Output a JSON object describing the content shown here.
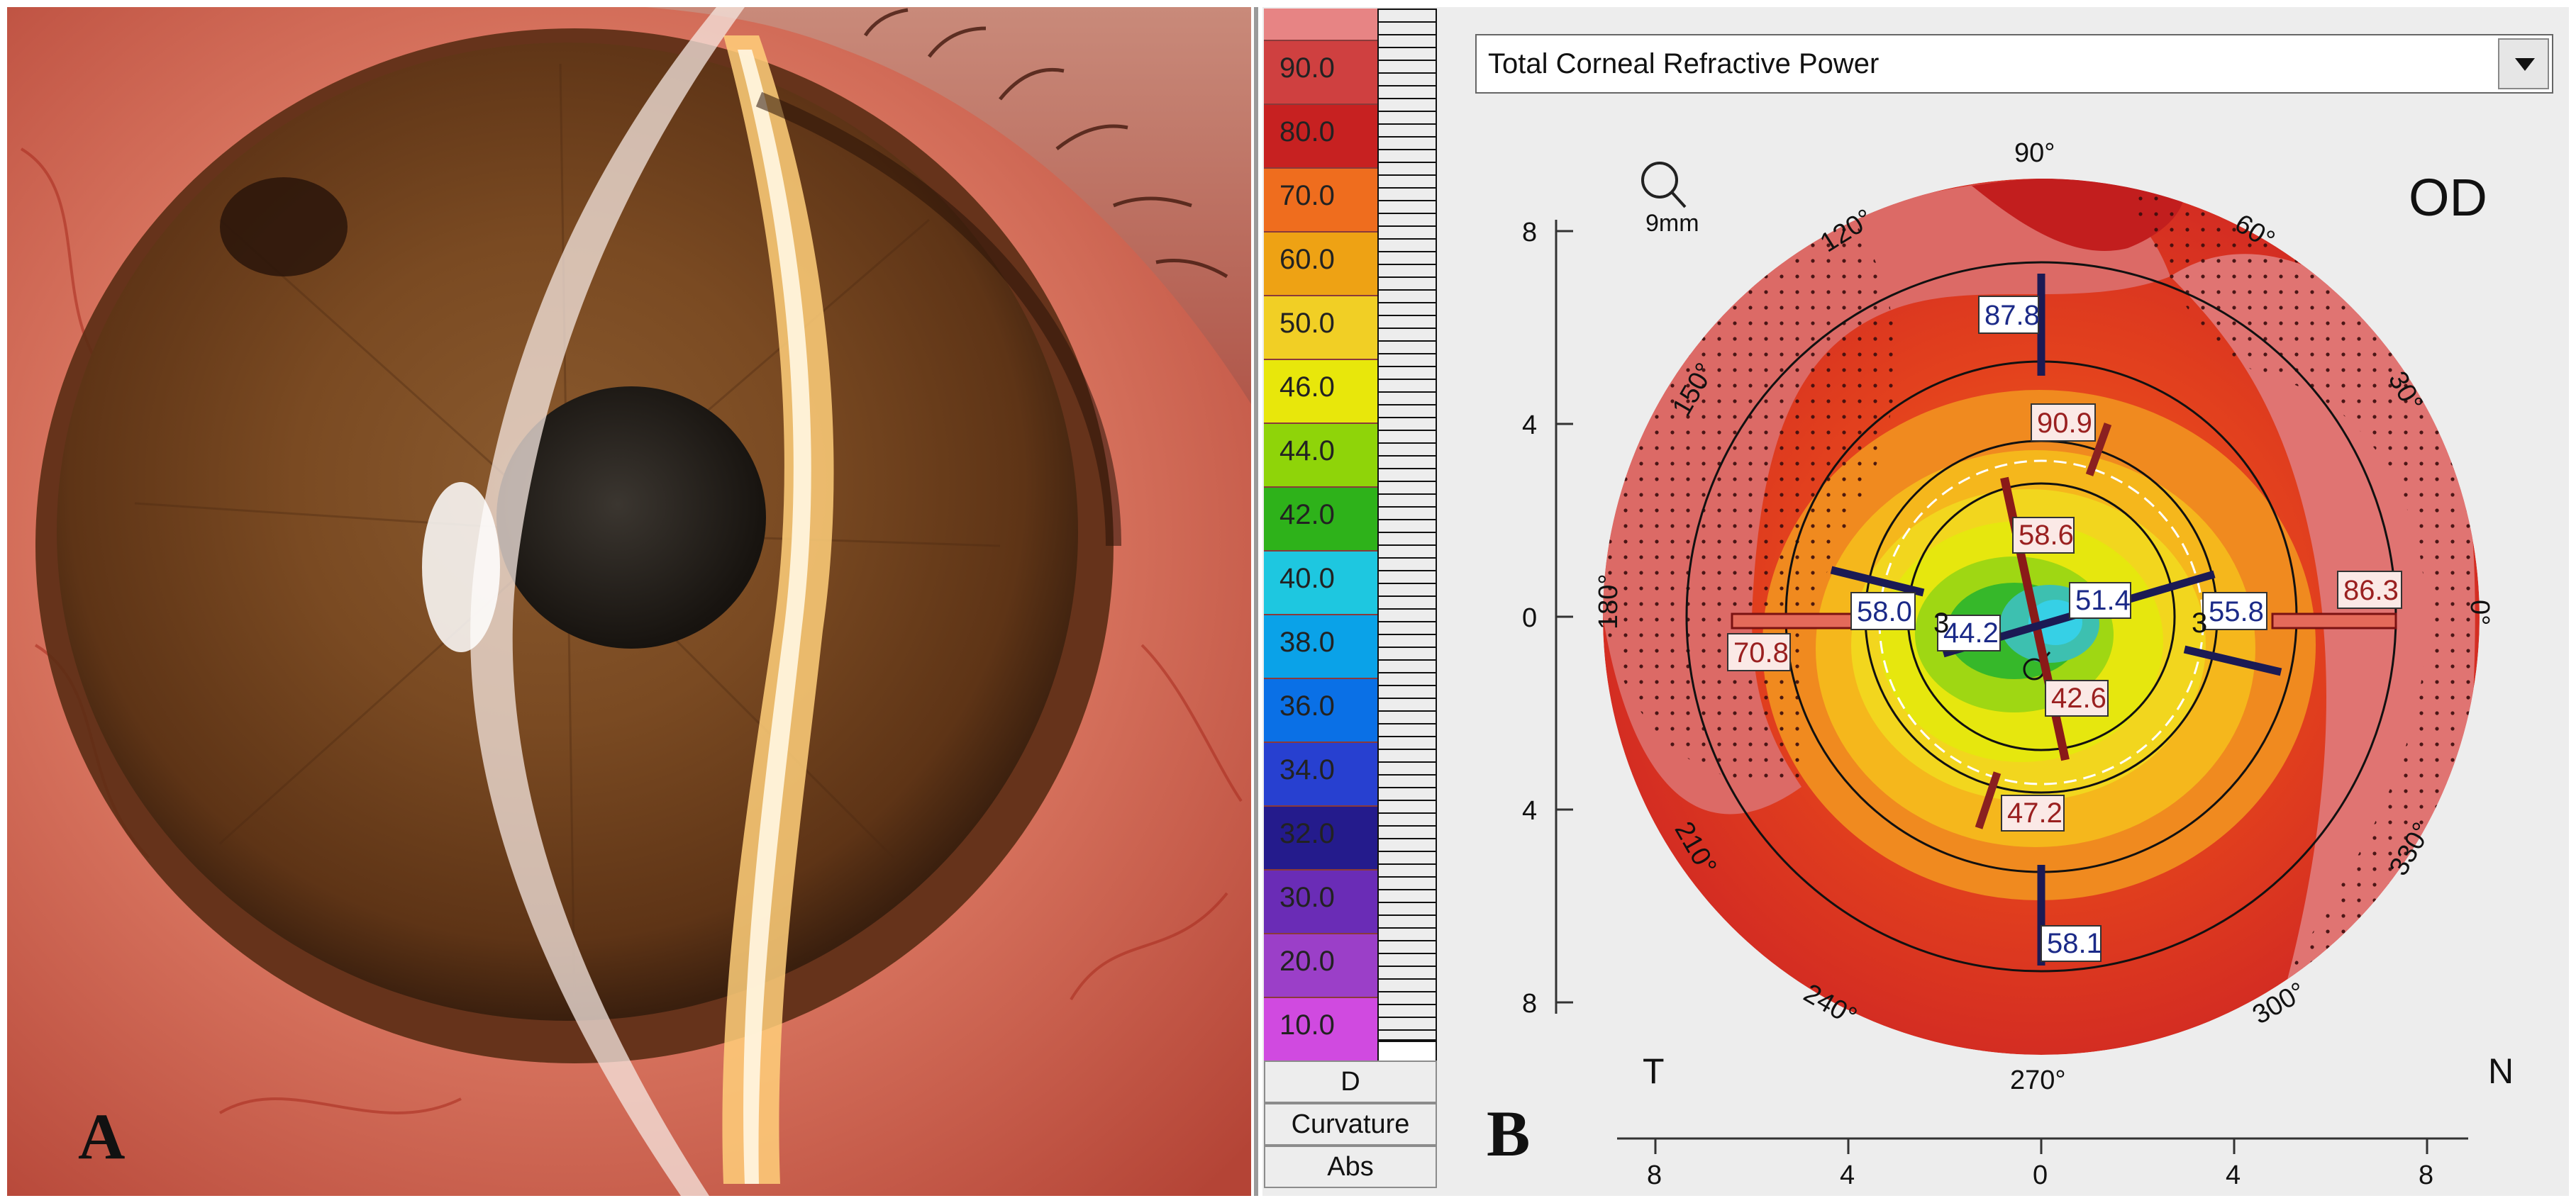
{
  "panel_a": {
    "letter": "A"
  },
  "panel_b": {
    "letter": "B",
    "map_type_dropdown": {
      "selected": "Total Corneal Refractive Power"
    },
    "eye_label": "OD",
    "zoom_label": "9mm",
    "scale_labels": [
      "90.0",
      "80.0",
      "70.0",
      "60.0",
      "50.0",
      "46.0",
      "44.0",
      "42.0",
      "40.0",
      "38.0",
      "36.0",
      "34.0",
      "32.0",
      "30.0",
      "20.0",
      "10.0"
    ],
    "scale_colors": [
      "#e78484",
      "#cf4040",
      "#c72121",
      "#ef6d1e",
      "#eea214",
      "#f1cf25",
      "#e8e70b",
      "#8fd409",
      "#2eb21a",
      "#1ec7e0",
      "#0aa2e8",
      "#0a70e6",
      "#2740d0",
      "#241b8c",
      "#6a2cb6",
      "#9b3fc8",
      "#d04ae0"
    ],
    "scale_units": [
      "D",
      "Curvature",
      "Abs"
    ],
    "angle_labels": {
      "a90": "90°",
      "a120": "120°",
      "a60": "60°",
      "a150": "150°",
      "a30": "30°",
      "a180": "180°",
      "a0": "0°",
      "a210": "210°",
      "a330": "330°",
      "a240": "240°",
      "a300": "300°",
      "a270": "270°"
    },
    "side_labels": {
      "temporal": "T",
      "nasal": "N"
    },
    "y_axis_ticks": [
      "8",
      "4",
      "0",
      "4",
      "8"
    ],
    "x_axis_ticks": [
      "8",
      "4",
      "0",
      "4",
      "8"
    ],
    "ring_labels": {
      "left": "3",
      "right": "3"
    },
    "measurements": {
      "m87_8": "87.8",
      "m90_9": "90.9",
      "m58_6": "58.6",
      "m51_4": "51.4",
      "m58_0": "58.0",
      "m44_2": "44.2",
      "m55_8": "55.8",
      "m86_3": "86.3",
      "m70_8": "70.8",
      "m42_6": "42.6",
      "m47_2": "47.2",
      "m58_1": "58.1"
    }
  }
}
